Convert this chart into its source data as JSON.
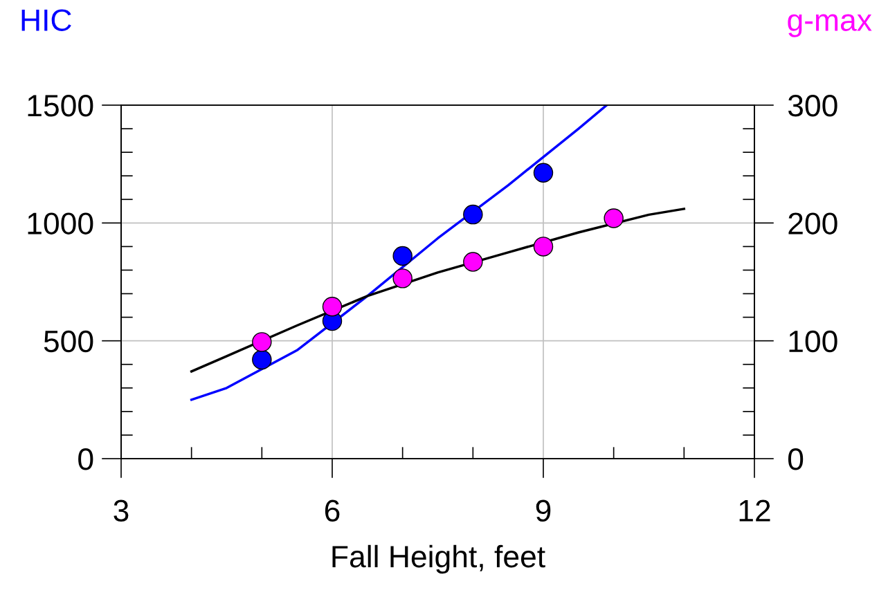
{
  "chart_data": {
    "type": "scatter",
    "xlabel": "Fall Height, feet",
    "ylabel": "HIC",
    "y2label": "g-max",
    "xlim": [
      3,
      12
    ],
    "xticks": [
      3,
      6,
      9,
      12
    ],
    "ylim": [
      0,
      1500
    ],
    "yticks": [
      0,
      500,
      1000,
      1500
    ],
    "y2lim": [
      0,
      300
    ],
    "y2ticks": [
      0,
      100,
      200,
      300
    ],
    "grid": true,
    "marker": "circle",
    "series": [
      {
        "type": "line",
        "color": "#0000ff",
        "marker": "none",
        "x": [
          4,
          4.5,
          5.5,
          6.5,
          7.5,
          8.5,
          9.5,
          9.9
        ],
        "values": [
          250,
          300,
          460,
          690,
          935,
          1160,
          1400,
          1500
        ]
      },
      {
        "type": "line",
        "color": "#000000",
        "marker": "none",
        "axis": "y2",
        "x": [
          4,
          4.5,
          5.5,
          6.5,
          7.5,
          8.5,
          9.5,
          10.5,
          11
        ],
        "values": [
          74,
          87,
          113,
          138,
          158,
          175,
          192,
          207,
          212
        ]
      },
      {
        "color": "#0000ff",
        "x": [
          5,
          6,
          7,
          8,
          9
        ],
        "values": [
          420,
          584,
          860,
          1036,
          1213
        ]
      },
      {
        "color": "#ff00ff",
        "axis": "y2",
        "x": [
          5,
          6,
          7,
          8,
          9,
          10
        ],
        "values": [
          99,
          129,
          153,
          167,
          180,
          204
        ]
      }
    ]
  }
}
